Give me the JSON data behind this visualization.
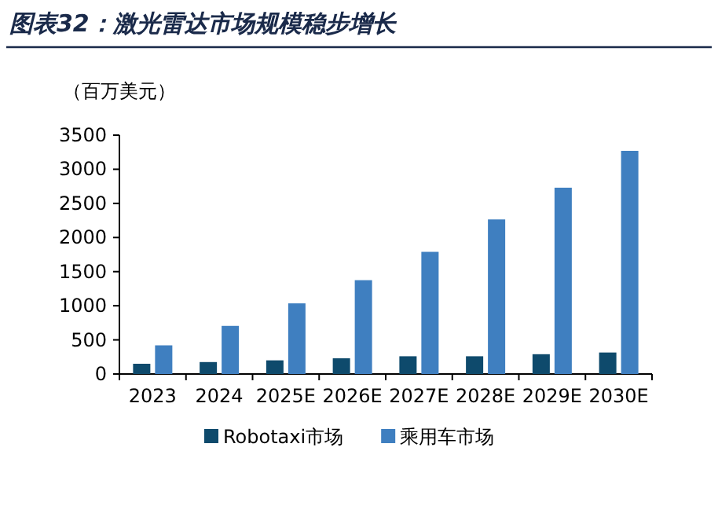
{
  "chart_data": {
    "type": "bar",
    "title": "图表32：激光雷达市场规模稳步增长",
    "ylabel": "（百万美元）",
    "categories": [
      "2023",
      "2024",
      "2025E",
      "2026E",
      "2027E",
      "2028E",
      "2029E",
      "2030E"
    ],
    "series": [
      {
        "name": "Robotaxi市场",
        "color": "#0e4a6c",
        "values": [
          150,
          175,
          200,
          230,
          260,
          260,
          290,
          315
        ]
      },
      {
        "name": "乘用车市场",
        "color": "#3f7fc0",
        "values": [
          420,
          705,
          1035,
          1375,
          1790,
          2265,
          2730,
          3270
        ]
      }
    ],
    "ylim": [
      0,
      3500
    ],
    "yticks": [
      0,
      500,
      1000,
      1500,
      2000,
      2500,
      3000,
      3500
    ],
    "grid": false,
    "legend": "bottom"
  }
}
